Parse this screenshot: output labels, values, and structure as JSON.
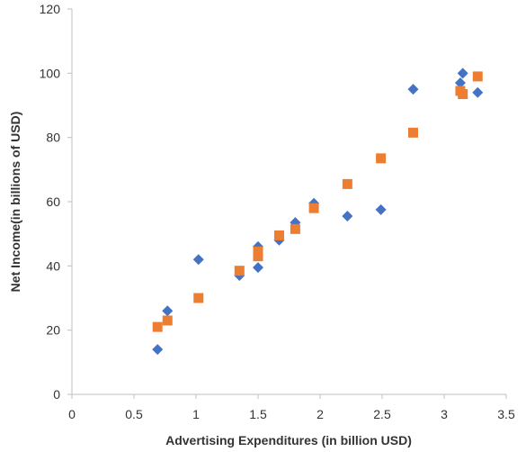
{
  "chart_data": {
    "type": "scatter",
    "title": "",
    "xlabel": "Advertising Expenditures (in billion USD)",
    "ylabel": "Net Income(in billions of USD)",
    "xlim": [
      0,
      3.5
    ],
    "ylim": [
      0,
      120
    ],
    "x_ticks": [
      "0",
      "0.5",
      "1",
      "1.5",
      "2",
      "2.5",
      "3",
      "3.5"
    ],
    "y_ticks": [
      "0",
      "20",
      "40",
      "60",
      "80",
      "100",
      "120"
    ],
    "grid": false,
    "legend": "none",
    "series": [
      {
        "marker": "diamond",
        "color": "#4472C4",
        "points": [
          {
            "x": 0.69,
            "y": 14
          },
          {
            "x": 0.77,
            "y": 26
          },
          {
            "x": 1.02,
            "y": 42
          },
          {
            "x": 1.35,
            "y": 37
          },
          {
            "x": 1.5,
            "y": 46
          },
          {
            "x": 1.5,
            "y": 39.5
          },
          {
            "x": 1.67,
            "y": 48
          },
          {
            "x": 1.8,
            "y": 53.5
          },
          {
            "x": 1.95,
            "y": 59.5
          },
          {
            "x": 2.22,
            "y": 55.5
          },
          {
            "x": 2.49,
            "y": 57.5
          },
          {
            "x": 2.75,
            "y": 95
          },
          {
            "x": 3.13,
            "y": 97
          },
          {
            "x": 3.15,
            "y": 100
          },
          {
            "x": 3.27,
            "y": 94
          }
        ]
      },
      {
        "marker": "square",
        "color": "#ED7D31",
        "points": [
          {
            "x": 0.69,
            "y": 21
          },
          {
            "x": 0.77,
            "y": 23
          },
          {
            "x": 1.02,
            "y": 30
          },
          {
            "x": 1.35,
            "y": 38.5
          },
          {
            "x": 1.5,
            "y": 44.5
          },
          {
            "x": 1.5,
            "y": 43
          },
          {
            "x": 1.67,
            "y": 49.5
          },
          {
            "x": 1.8,
            "y": 51.5
          },
          {
            "x": 1.95,
            "y": 58
          },
          {
            "x": 2.22,
            "y": 65.5
          },
          {
            "x": 2.49,
            "y": 73.5
          },
          {
            "x": 2.75,
            "y": 81.5
          },
          {
            "x": 3.13,
            "y": 94.5
          },
          {
            "x": 3.15,
            "y": 93.5
          },
          {
            "x": 3.27,
            "y": 99
          }
        ]
      }
    ]
  }
}
